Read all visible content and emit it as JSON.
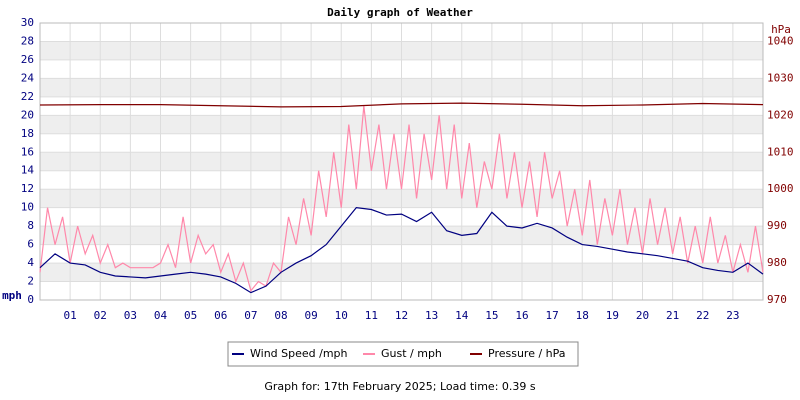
{
  "chart_data": {
    "type": "line",
    "title": "Daily graph of Weather",
    "ylabel": "mph",
    "y2label": "hPa",
    "footer": "Graph for: 17th February 2025; Load time: 0.39 s",
    "xlim": [
      0,
      24
    ],
    "xticks": [
      {
        "value": 1,
        "label": "01"
      },
      {
        "value": 2,
        "label": "02"
      },
      {
        "value": 3,
        "label": "03"
      },
      {
        "value": 4,
        "label": "04"
      },
      {
        "value": 5,
        "label": "05"
      },
      {
        "value": 6,
        "label": "06"
      },
      {
        "value": 7,
        "label": "07"
      },
      {
        "value": 8,
        "label": "08"
      },
      {
        "value": 9,
        "label": "09"
      },
      {
        "value": 10,
        "label": "10"
      },
      {
        "value": 11,
        "label": "11"
      },
      {
        "value": 12,
        "label": "12"
      },
      {
        "value": 13,
        "label": "13"
      },
      {
        "value": 14,
        "label": "14"
      },
      {
        "value": 15,
        "label": "15"
      },
      {
        "value": 16,
        "label": "16"
      },
      {
        "value": 17,
        "label": "17"
      },
      {
        "value": 18,
        "label": "18"
      },
      {
        "value": 19,
        "label": "19"
      },
      {
        "value": 20,
        "label": "20"
      },
      {
        "value": 21,
        "label": "21"
      },
      {
        "value": 22,
        "label": "22"
      },
      {
        "value": 23,
        "label": "23"
      }
    ],
    "ylim": [
      0,
      30
    ],
    "yticks": [
      0,
      2,
      4,
      6,
      8,
      10,
      12,
      14,
      16,
      18,
      20,
      22,
      24,
      26,
      28,
      30
    ],
    "y2lim": [
      970,
      1045
    ],
    "y2ticks": [
      970,
      980,
      990,
      1000,
      1010,
      1020,
      1030,
      1040
    ],
    "grid": true,
    "series": [
      {
        "name": "Gust / mph",
        "color": "#ff88aa",
        "x": [
          0,
          0.25,
          0.5,
          0.75,
          1,
          1.25,
          1.5,
          1.75,
          2,
          2.25,
          2.5,
          2.75,
          3,
          3.25,
          3.5,
          3.75,
          4,
          4.25,
          4.5,
          4.75,
          5,
          5.25,
          5.5,
          5.75,
          6,
          6.25,
          6.5,
          6.75,
          7,
          7.25,
          7.5,
          7.75,
          8,
          8.25,
          8.5,
          8.75,
          9,
          9.25,
          9.5,
          9.75,
          10,
          10.25,
          10.5,
          10.75,
          11,
          11.25,
          11.5,
          11.75,
          12,
          12.25,
          12.5,
          12.75,
          13,
          13.25,
          13.5,
          13.75,
          14,
          14.25,
          14.5,
          14.75,
          15,
          15.25,
          15.5,
          15.75,
          16,
          16.25,
          16.5,
          16.75,
          17,
          17.25,
          17.5,
          17.75,
          18,
          18.25,
          18.5,
          18.75,
          19,
          19.25,
          19.5,
          19.75,
          20,
          20.25,
          20.5,
          20.75,
          21,
          21.25,
          21.5,
          21.75,
          22,
          22.25,
          22.5,
          22.75,
          23,
          23.25,
          23.5,
          23.75,
          24
        ],
        "values": [
          3,
          10,
          6,
          9,
          4,
          8,
          5,
          7,
          4,
          6,
          3.5,
          4,
          3.5,
          3.5,
          3.5,
          3.5,
          4,
          6,
          3.5,
          9,
          4,
          7,
          5,
          6,
          3,
          5,
          2,
          4,
          1,
          2,
          1.5,
          4,
          3,
          9,
          6,
          11,
          7,
          14,
          9,
          16,
          10,
          19,
          12,
          21,
          14,
          19,
          12,
          18,
          12,
          19,
          11,
          18,
          13,
          20,
          12,
          19,
          11,
          17,
          10,
          15,
          12,
          18,
          11,
          16,
          10,
          15,
          9,
          16,
          11,
          14,
          8,
          12,
          7,
          13,
          6,
          11,
          7,
          12,
          6,
          10,
          5,
          11,
          6,
          10,
          5,
          9,
          4,
          8,
          4,
          9,
          4,
          7,
          3,
          6,
          3,
          8,
          3
        ]
      },
      {
        "name": "Wind Speed /mph",
        "color": "#000080",
        "x": [
          0,
          0.5,
          1,
          1.5,
          2,
          2.5,
          3,
          3.5,
          4,
          4.5,
          5,
          5.5,
          6,
          6.5,
          7,
          7.5,
          8,
          8.5,
          9,
          9.5,
          10,
          10.5,
          11,
          11.5,
          12,
          12.5,
          13,
          13.5,
          14,
          14.5,
          15,
          15.5,
          16,
          16.5,
          17,
          17.5,
          18,
          18.5,
          19,
          19.5,
          20,
          20.5,
          21,
          21.5,
          22,
          22.5,
          23,
          23.5,
          24
        ],
        "values": [
          3.5,
          5,
          4,
          3.8,
          3,
          2.6,
          2.5,
          2.4,
          2.6,
          2.8,
          3,
          2.8,
          2.5,
          1.8,
          0.8,
          1.5,
          3,
          4,
          4.8,
          6,
          8,
          10,
          9.8,
          9.2,
          9.3,
          8.5,
          9.5,
          7.5,
          7,
          7.2,
          9.5,
          8,
          7.8,
          8.3,
          7.8,
          6.8,
          6,
          5.8,
          5.5,
          5.2,
          5,
          4.8,
          4.5,
          4.2,
          3.5,
          3.2,
          3,
          4,
          2.8
        ]
      },
      {
        "name": "Pressure / hPa",
        "color": "#800000",
        "axis": "y2",
        "x": [
          0,
          2,
          4,
          6,
          8,
          10,
          12,
          14,
          16,
          18,
          20,
          22,
          24
        ],
        "values": [
          1022.8,
          1022.9,
          1022.9,
          1022.6,
          1022.3,
          1022.4,
          1023.1,
          1023.3,
          1023.0,
          1022.6,
          1022.8,
          1023.2,
          1022.9
        ]
      }
    ],
    "legend_order": [
      1,
      0,
      2
    ]
  }
}
